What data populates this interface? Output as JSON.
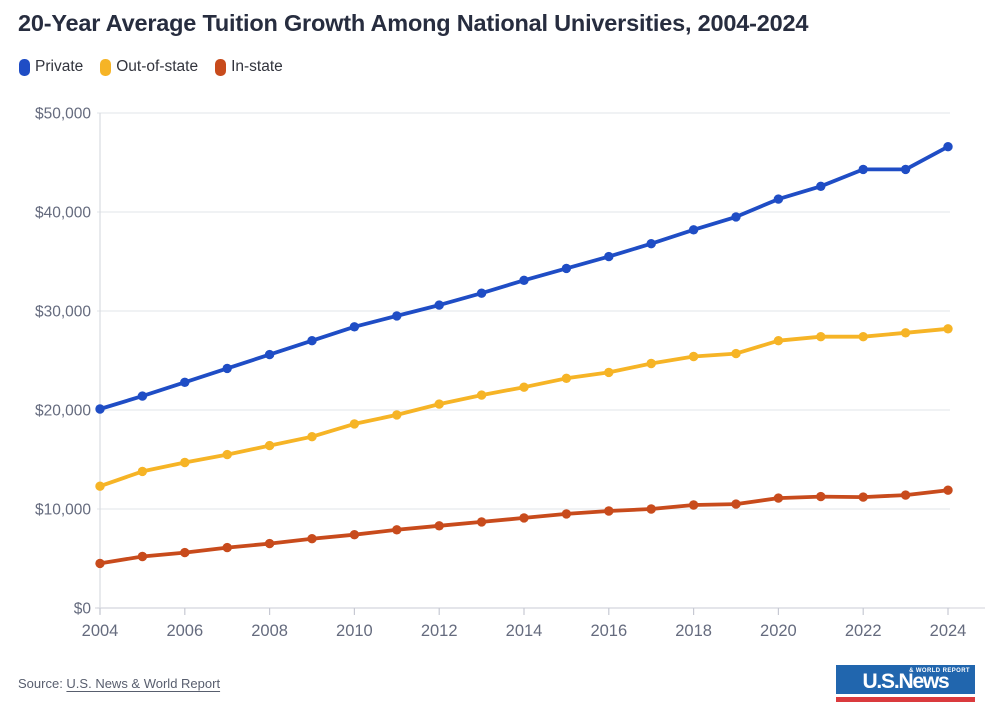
{
  "header": {
    "title": "20-Year Average Tuition Growth Among National Universities, 2004-2024"
  },
  "footer": {
    "source_prefix": "Source: ",
    "source_link": "U.S. News & World Report",
    "logo": {
      "main": "U.S.News",
      "small": "& WORLD REPORT"
    }
  },
  "colors": {
    "private": "#1f4dc5",
    "out_of_state": "#f6b426",
    "in_state": "#c84b1c",
    "title_text": "#272d3f",
    "axis_text": "#656b7e",
    "legend_text": "#32343d",
    "gridline": "#e8e9ed",
    "axis_line": "#d9dbe1",
    "tick": "#c7c9d3",
    "logo_blue": "#2166ae",
    "logo_red": "#da3a3d"
  },
  "chart_data": {
    "type": "line",
    "title": "20-Year Average Tuition Growth Among National Universities, 2004-2024",
    "xlabel": "",
    "ylabel": "",
    "x": [
      2004,
      2005,
      2006,
      2007,
      2008,
      2009,
      2010,
      2011,
      2012,
      2013,
      2014,
      2015,
      2016,
      2017,
      2018,
      2019,
      2020,
      2021,
      2022,
      2023,
      2024
    ],
    "x_tick_labels": [
      "2004",
      "2006",
      "2008",
      "2010",
      "2012",
      "2014",
      "2016",
      "2018",
      "2020",
      "2022",
      "2024"
    ],
    "x_tick_values": [
      2004,
      2006,
      2008,
      2010,
      2012,
      2014,
      2016,
      2018,
      2020,
      2022,
      2024
    ],
    "ylim": [
      0,
      50000
    ],
    "y_ticks": [
      {
        "value": 0,
        "label": "$0"
      },
      {
        "value": 10000,
        "label": "$10,000"
      },
      {
        "value": 20000,
        "label": "$20,000"
      },
      {
        "value": 30000,
        "label": "$30,000"
      },
      {
        "value": 40000,
        "label": "$40,000"
      },
      {
        "value": 50000,
        "label": "$50,000"
      }
    ],
    "grid": "horizontal",
    "legend_position": "top-left",
    "series": [
      {
        "name": "Private",
        "color": "#1f4dc5",
        "values": [
          20100,
          21400,
          22800,
          24200,
          25600,
          27000,
          28400,
          29500,
          30600,
          31800,
          33100,
          34300,
          35500,
          36800,
          38200,
          39500,
          41300,
          42600,
          44300,
          44300,
          46600
        ]
      },
      {
        "name": "Out-of-state",
        "color": "#f6b426",
        "values": [
          12300,
          13800,
          14700,
          15500,
          16400,
          17300,
          18600,
          19500,
          20600,
          21500,
          22300,
          23200,
          23800,
          24700,
          25400,
          25700,
          27000,
          27400,
          27400,
          27800,
          28200
        ]
      },
      {
        "name": "In-state",
        "color": "#c84b1c",
        "values": [
          4500,
          5200,
          5600,
          6100,
          6500,
          7000,
          7400,
          7900,
          8300,
          8700,
          9100,
          9500,
          9800,
          10000,
          10400,
          10500,
          11100,
          11250,
          11200,
          11400,
          11900
        ]
      }
    ]
  }
}
